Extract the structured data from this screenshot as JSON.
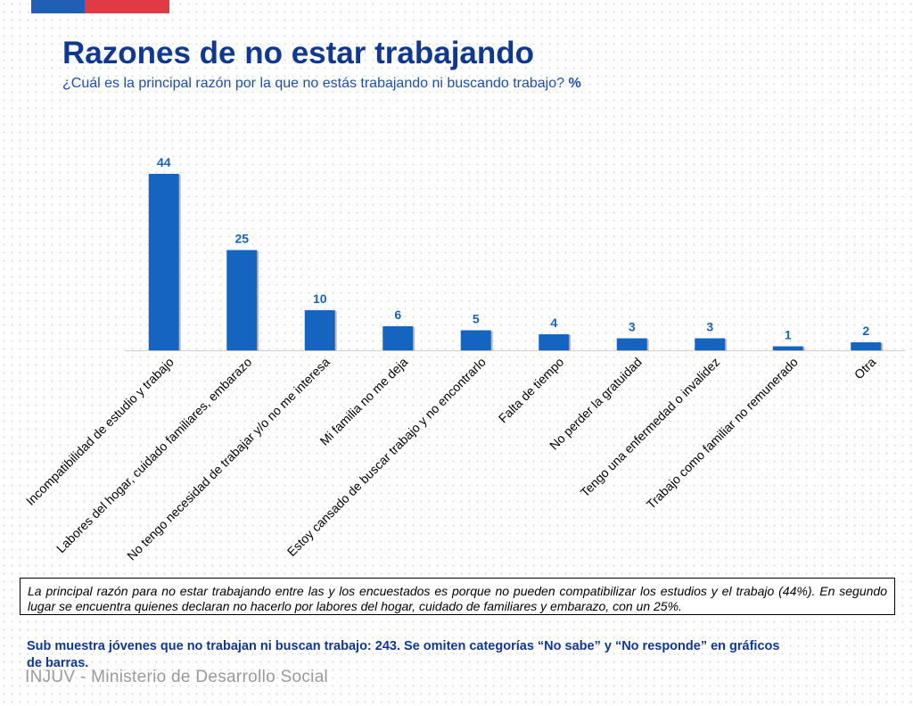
{
  "header": {
    "title": "Razones de no estar trabajando",
    "subtitle": "¿Cuál es la principal razón por la que no estás trabajando ni buscando trabajo?",
    "unit": "%"
  },
  "chart_data": {
    "type": "bar",
    "categories": [
      "Incompatibilidad de estudio y trabajo",
      "Labores del hogar, cuidado familiares, embarazo",
      "No tengo necesidad de trabajar y/o no me interesa",
      "Mi familia no me deja",
      "Estoy cansado de buscar trabajo y no encontrarlo",
      "Falta de tiempo",
      "No perder la gratuidad",
      "Tengo una enfermedad o invalidez",
      "Trabajo como familiar no remunerado",
      "Otra"
    ],
    "values": [
      44,
      25,
      10,
      6,
      5,
      4,
      3,
      3,
      1,
      2
    ],
    "ylim": [
      0,
      45
    ],
    "grid": false,
    "colors": {
      "bar": "#1565c0",
      "label": "#1c63b0"
    }
  },
  "note": "La principal razón para no estar trabajando entre las y los encuestados es porque no pueden compatibilizar los estudios y el trabajo (44%). En segundo lugar se encuentra quienes declaran no hacerlo por labores del hogar, cuidado de familiares y embarazo, con un 25%.",
  "footnote": "Sub muestra jóvenes que no trabajan ni buscan trabajo: 243. Se omiten categorías “No sabe” y “No responde” en gráficos de barras.",
  "footer": "INJUV - Ministerio de Desarrollo Social",
  "brand_colors": {
    "flag_blue": "#1f5fb5",
    "flag_red": "#e03a45",
    "title": "#10388f"
  }
}
